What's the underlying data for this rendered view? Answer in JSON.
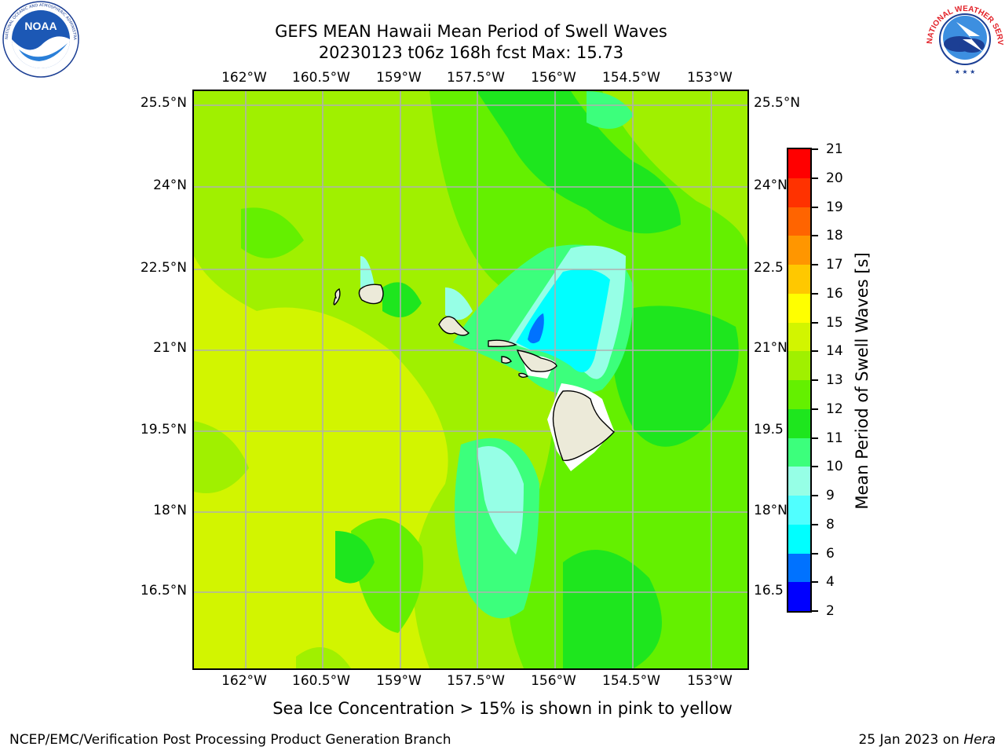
{
  "title": {
    "line1": "GEFS MEAN Hawaii Mean Period of Swell Waves",
    "line2": "20230123 t06z 168h fcst   Max: 15.73"
  },
  "map": {
    "lon_labels": [
      "162°W",
      "160.5°W",
      "159°W",
      "157.5°W",
      "156°W",
      "154.5°W",
      "153°W"
    ],
    "lat_labels_left": [
      "25.5°N",
      "24°N",
      "22.5°N",
      "21°N",
      "19.5°N",
      "18°N",
      "16.5°N"
    ],
    "lat_labels_right": [
      "25.5°N",
      "24°N",
      "22.5",
      "21°N",
      "19.5",
      "18°N",
      "16.5"
    ],
    "field_max": 15.73
  },
  "colorbar": {
    "title": "Mean Period of Swell Waves [s]",
    "tick_labels": [
      "2",
      "4",
      "6",
      "8",
      "9",
      "10",
      "11",
      "12",
      "13",
      "14",
      "15",
      "16",
      "17",
      "18",
      "19",
      "20",
      "21"
    ],
    "colors": [
      "#0000ff",
      "#0072ff",
      "#00ffff",
      "#50ffff",
      "#96ffe6",
      "#3cff7c",
      "#1ee61e",
      "#64f000",
      "#a0f000",
      "#d2f500",
      "#ffff00",
      "#ffc800",
      "#ff9600",
      "#ff6400",
      "#ff3200",
      "#ff0000"
    ]
  },
  "caption": "Sea Ice Concentration > 15% is shown in pink to yellow",
  "footer": {
    "left": "NCEP/EMC/Verification Post Processing Product Generation Branch",
    "date": "25 Jan 2023 on ",
    "host": "Hera"
  },
  "logos": {
    "noaa_text": "NOAA",
    "noaa_ring_text": "NATIONAL OCEANIC AND ATMOSPHERIC ADMINISTRATION · U.S. DEPARTMENT OF COMMERCE",
    "nws_ring_text": "NATIONAL WEATHER SERVICE"
  }
}
